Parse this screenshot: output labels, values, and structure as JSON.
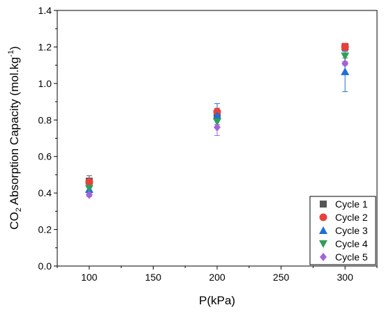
{
  "chart_data": {
    "type": "scatter",
    "xlabel": "P(kPa)",
    "ylabel": {
      "prefix": "CO",
      "sub": "2",
      "mid": " Absorption Capacity (mol.kg",
      "sup": "-1",
      "suffix": ")"
    },
    "xlim": [
      75,
      325
    ],
    "ylim": [
      0,
      1.4
    ],
    "xticks": [
      100,
      150,
      200,
      250,
      300
    ],
    "yticks": [
      0.0,
      0.2,
      0.4,
      0.6,
      0.8,
      1.0,
      1.2,
      1.4
    ],
    "ytick_labels": [
      "0.0",
      "0.2",
      "0.4",
      "0.6",
      "0.8",
      "1.0",
      "1.2",
      "1.4"
    ],
    "legend_position": "bottom-right",
    "series": [
      {
        "name": "Cycle 1",
        "marker": "square",
        "color": "#555555",
        "points": [
          {
            "x": 100,
            "y": 0.465,
            "err": 0.03
          },
          {
            "x": 200,
            "y": 0.835,
            "err": 0.02
          },
          {
            "x": 300,
            "y": 1.2,
            "err": 0.02
          }
        ]
      },
      {
        "name": "Cycle 2",
        "marker": "circle",
        "color": "#e8413c",
        "points": [
          {
            "x": 100,
            "y": 0.46,
            "err": 0.02
          },
          {
            "x": 200,
            "y": 0.845,
            "err": 0.02
          },
          {
            "x": 300,
            "y": 1.2,
            "err": 0.02
          }
        ]
      },
      {
        "name": "Cycle 3",
        "marker": "triangle-up",
        "color": "#1f6fd6",
        "points": [
          {
            "x": 100,
            "y": 0.42,
            "err": 0.02
          },
          {
            "x": 200,
            "y": 0.825,
            "err": 0.065
          },
          {
            "x": 300,
            "y": 1.065,
            "err": 0.11
          }
        ]
      },
      {
        "name": "Cycle 4",
        "marker": "triangle-down",
        "color": "#2f9e5a",
        "points": [
          {
            "x": 100,
            "y": 0.425,
            "err": 0.01
          },
          {
            "x": 200,
            "y": 0.79,
            "err": 0.015
          },
          {
            "x": 300,
            "y": 1.15,
            "err": 0.01
          }
        ]
      },
      {
        "name": "Cycle 5",
        "marker": "diamond",
        "color": "#a463d8",
        "points": [
          {
            "x": 100,
            "y": 0.39,
            "err": 0.01
          },
          {
            "x": 200,
            "y": 0.76,
            "err": 0.045
          },
          {
            "x": 300,
            "y": 1.11,
            "err": 0.01
          }
        ]
      }
    ]
  }
}
